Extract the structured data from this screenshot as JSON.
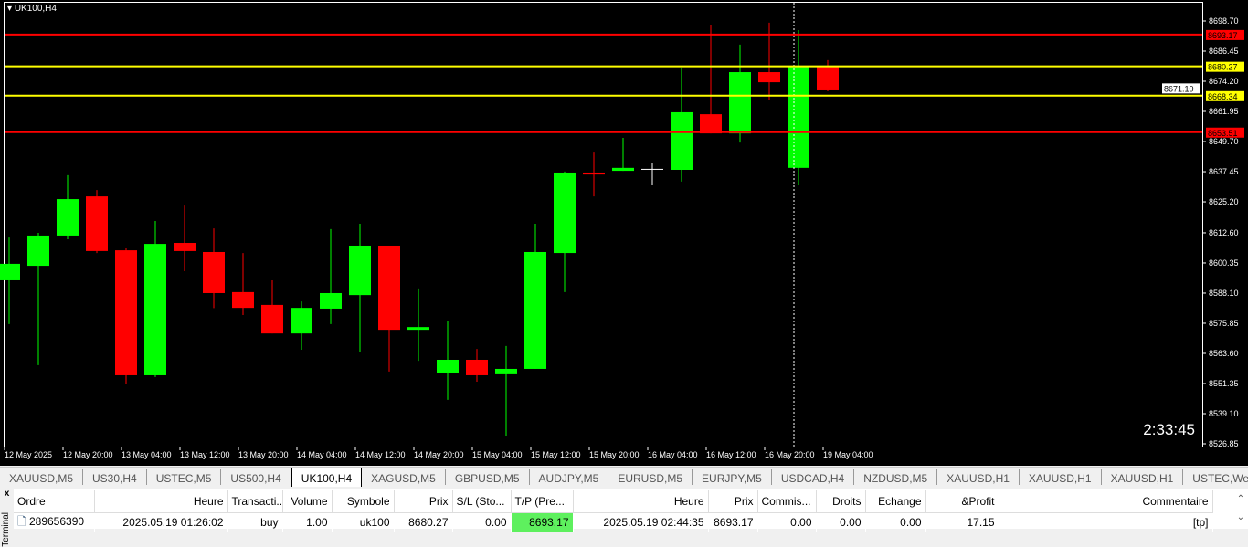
{
  "chart": {
    "symbol": "UK100,H4",
    "timer": "2:33:45",
    "price_axis": [
      "8698.70",
      "8686.45",
      "8674.20",
      "8661.95",
      "8649.70",
      "8637.45",
      "8625.20",
      "8612.60",
      "8600.35",
      "8588.10",
      "8575.85",
      "8563.60",
      "8551.35",
      "8539.10",
      "8526.85"
    ],
    "price_range": [
      8526.85,
      8698.7
    ],
    "time_axis": [
      "12 May 2025",
      "12 May 20:00",
      "13 May 04:00",
      "13 May 12:00",
      "13 May 20:00",
      "14 May 04:00",
      "14 May 12:00",
      "14 May 20:00",
      "15 May 04:00",
      "15 May 12:00",
      "15 May 20:00",
      "16 May 04:00",
      "16 May 12:00",
      "16 May 20:00",
      "19 May 04:00"
    ],
    "levels": [
      {
        "price": "8693.17",
        "color": "#ff0000"
      },
      {
        "price": "8680.27",
        "color": "#ffff00"
      },
      {
        "price": "8668.34",
        "color": "#ffff00"
      },
      {
        "price": "8653.51",
        "color": "#ff0000"
      }
    ],
    "bid": "8671.10",
    "colors": {
      "bull": "#00ff00",
      "bear": "#ff0000",
      "doji": "#ffffff",
      "background": "#000000"
    },
    "candles_ohlc": [
      [
        8593.3,
        8610.7,
        8575.5,
        8600.0
      ],
      [
        8599.2,
        8612.6,
        8558.8,
        8611.5
      ],
      [
        8611.5,
        8636.0,
        8610.0,
        8626.3
      ],
      [
        8627.4,
        8630.0,
        8604.4,
        8605.2
      ],
      [
        8605.5,
        8606.3,
        8551.3,
        8554.7
      ],
      [
        8554.7,
        8617.4,
        8554.0,
        8608.1
      ],
      [
        8608.5,
        8623.7,
        8597.0,
        8605.2
      ],
      [
        8604.8,
        8614.4,
        8582.0,
        8588.1
      ],
      [
        8588.5,
        8604.4,
        8579.2,
        8582.1
      ],
      [
        8583.3,
        8593.3,
        8571.7,
        8571.7
      ],
      [
        8571.7,
        8584.7,
        8565.1,
        8582.1
      ],
      [
        8581.8,
        8614.1,
        8575.5,
        8588.1
      ],
      [
        8587.3,
        8616.3,
        8564.0,
        8607.4
      ],
      [
        8607.4,
        8607.4,
        8556.2,
        8573.2
      ],
      [
        8573.2,
        8590.0,
        8560.6,
        8574.3
      ],
      [
        8555.8,
        8576.6,
        8544.7,
        8561.0
      ],
      [
        8561.0,
        8565.4,
        8552.1,
        8554.7
      ],
      [
        8555.1,
        8566.6,
        8530.2,
        8557.3
      ],
      [
        8557.3,
        8616.3,
        8557.3,
        8604.8
      ],
      [
        8604.4,
        8637.5,
        8588.5,
        8637.1
      ],
      [
        8637.1,
        8645.6,
        8627.4,
        8636.3
      ],
      [
        8637.8,
        8651.2,
        8637.8,
        8639.0
      ],
      [
        8638.6,
        8640.8,
        8631.9,
        8638.6
      ],
      [
        8638.2,
        8679.8,
        8633.4,
        8661.6
      ],
      [
        8660.8,
        8697.2,
        8653.0,
        8653.0
      ],
      [
        8653.0,
        8689.1,
        8649.3,
        8677.9
      ],
      [
        8677.9,
        8698.0,
        8666.4,
        8673.8
      ],
      [
        8639.0,
        8695.0,
        8631.9,
        8680.5
      ],
      [
        8680.1,
        8682.8,
        8670.1,
        8670.5
      ]
    ]
  },
  "tabs": [
    "XAUUSD,M5",
    "US30,H4",
    "USTEC,M5",
    "US500,H4",
    "UK100,H4",
    "XAGUSD,M5",
    "GBPUSD,M5",
    "AUDJPY,M5",
    "EURUSD,M5",
    "EURJPY,M5",
    "USDCAD,H4",
    "NZDUSD,M5",
    "XAUUSD,H1",
    "XAUUSD,H1",
    "XAUUSD,H1",
    "USTEC,Weekly"
  ],
  "active_tab": "UK100,H4",
  "terminal": {
    "close": "x",
    "side_label": "Terminal",
    "columns": [
      "Ordre",
      "Heure",
      "Transacti...",
      "Volume",
      "Symbole",
      "Prix",
      "S/L (Sto...",
      "T/P (Pre...",
      "Heure",
      "Prix",
      "Commis...",
      "Droits",
      "Echange",
      "&Profit",
      "Commentaire"
    ],
    "rows": [
      [
        "289656390",
        "2025.05.19 01:26:02",
        "buy",
        "1.00",
        "uk100",
        "8680.27",
        "0.00",
        "8693.17",
        "2025.05.19 02:44:35",
        "8693.17",
        "0.00",
        "0.00",
        "0.00",
        "17.15",
        "[tp]"
      ]
    ]
  }
}
